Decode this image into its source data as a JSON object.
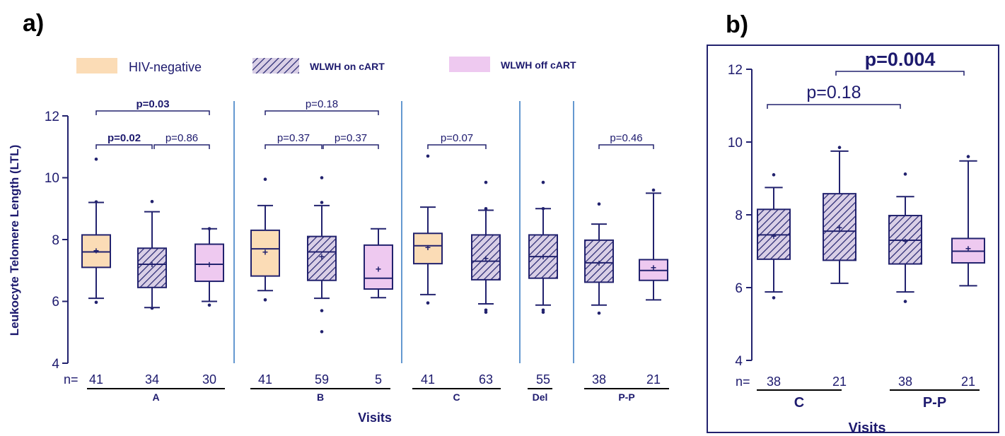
{
  "colors": {
    "navy": "#22226e",
    "hiv_negative": "#fbdcb6",
    "wlwh_on_cart": "#d9cfe6",
    "wlwh_off_cart": "#eec9f0",
    "divider": "#3d7fc4"
  },
  "panel_a": {
    "letter": "a)",
    "ylabel": "Leukocyte Telomere Length (LTL)",
    "xlabel": "Visits",
    "n_prefix": "n=",
    "legend": [
      {
        "label": "HIV-negative",
        "style": "hiv_negative"
      },
      {
        "label": "WLWH on cART",
        "style": "wlwh_on_cart"
      },
      {
        "label": "WLWH off cART",
        "style": "wlwh_off_cart"
      }
    ]
  },
  "panel_b": {
    "letter": "b)",
    "xlabel": "Visits",
    "n_prefix": "n="
  },
  "chart_data": [
    {
      "type": "box",
      "panel": "a",
      "ylabel": "Leukocyte Telomere Length (LTL)",
      "xlabel": "Visits",
      "ylim": [
        4,
        12
      ],
      "yticks": [
        4,
        6,
        8,
        10,
        12
      ],
      "groups": [
        {
          "visit": "A",
          "boxes": [
            {
              "group": "HIV-negative",
              "n": "41",
              "min": 6.1,
              "q1": 7.1,
              "median": 7.6,
              "q3": 8.15,
              "max": 9.2,
              "mean": 7.65,
              "outliers": [
                5.97,
                9.22,
                10.6
              ]
            },
            {
              "group": "WLWH on cART",
              "n": "34",
              "min": 5.8,
              "q1": 6.45,
              "median": 7.2,
              "q3": 7.72,
              "max": 8.9,
              "mean": 7.2,
              "outliers": [
                5.78,
                9.23
              ]
            },
            {
              "group": "WLWH off cART",
              "n": "30",
              "min": 6.0,
              "q1": 6.65,
              "median": 7.2,
              "q3": 7.85,
              "max": 8.35,
              "mean": 7.2,
              "outliers": [
                5.88,
                8.35
              ]
            }
          ]
        },
        {
          "visit": "B",
          "boxes": [
            {
              "group": "HIV-negative",
              "n": "41",
              "min": 6.35,
              "q1": 6.82,
              "median": 7.7,
              "q3": 8.3,
              "max": 9.1,
              "mean": 7.6,
              "outliers": [
                6.05,
                9.95
              ]
            },
            {
              "group": "WLWH on cART",
              "n": "59",
              "min": 6.1,
              "q1": 6.68,
              "median": 7.6,
              "q3": 8.1,
              "max": 9.1,
              "mean": 7.45,
              "outliers": [
                5.02,
                5.7,
                9.2,
                10.0
              ]
            },
            {
              "group": "WLWH off cART",
              "n": "5",
              "min": 6.12,
              "q1": 6.4,
              "median": 6.75,
              "q3": 7.82,
              "max": 8.35,
              "mean": 7.05,
              "outliers": []
            }
          ]
        },
        {
          "visit": "C",
          "boxes": [
            {
              "group": "HIV-negative",
              "n": "41",
              "min": 6.22,
              "q1": 7.22,
              "median": 7.8,
              "q3": 8.2,
              "max": 9.05,
              "mean": 7.75,
              "outliers": [
                5.95,
                10.7
              ]
            },
            {
              "group": "WLWH on cART",
              "n": "63",
              "min": 5.92,
              "q1": 6.7,
              "median": 7.3,
              "q3": 8.15,
              "max": 8.95,
              "mean": 7.4,
              "outliers": [
                5.65,
                5.72,
                9.0,
                9.85
              ]
            }
          ]
        },
        {
          "visit": "Del",
          "boxes": [
            {
              "group": "WLWH on cART",
              "n": "55",
              "min": 5.88,
              "q1": 6.75,
              "median": 7.45,
              "q3": 8.15,
              "max": 9.0,
              "mean": 7.45,
              "outliers": [
                5.65,
                5.72,
                9.0,
                9.85
              ]
            }
          ]
        },
        {
          "visit": "P-P",
          "boxes": [
            {
              "group": "WLWH on cART",
              "n": "38",
              "min": 5.88,
              "q1": 6.62,
              "median": 7.25,
              "q3": 7.98,
              "max": 8.5,
              "mean": 7.25,
              "outliers": [
                5.62,
                9.15
              ]
            },
            {
              "group": "WLWH off cART",
              "n": "21",
              "min": 6.05,
              "q1": 6.68,
              "median": 7.0,
              "q3": 7.35,
              "max": 9.5,
              "mean": 7.1,
              "outliers": [
                9.6
              ]
            }
          ]
        }
      ],
      "comparisons": [
        {
          "text": "p=0.03",
          "bold": true
        },
        {
          "text": "p=0.02",
          "bold": true
        },
        {
          "text": "p=0.86",
          "bold": false
        },
        {
          "text": "p=0.18",
          "bold": false
        },
        {
          "text": "p=0.37",
          "bold": false
        },
        {
          "text": "p=0.37",
          "bold": false
        },
        {
          "text": "p=0.07",
          "bold": false
        },
        {
          "text": "p=0.46",
          "bold": false
        }
      ]
    },
    {
      "type": "box",
      "panel": "b",
      "xlabel": "Visits",
      "ylim": [
        4,
        12
      ],
      "yticks": [
        4,
        6,
        8,
        10,
        12
      ],
      "groups": [
        {
          "visit": "C",
          "boxes": [
            {
              "group": "WLWH on cART",
              "n": "38",
              "min": 5.88,
              "q1": 6.78,
              "median": 7.45,
              "q3": 8.15,
              "max": 8.75,
              "mean": 7.42,
              "outliers": [
                5.72,
                9.1
              ]
            },
            {
              "group": "WLWH on cART",
              "n": "21",
              "min": 6.12,
              "q1": 6.75,
              "median": 7.55,
              "q3": 8.58,
              "max": 9.75,
              "mean": 7.65,
              "outliers": [
                9.85
              ]
            }
          ]
        },
        {
          "visit": "P-P",
          "boxes": [
            {
              "group": "WLWH on cART",
              "n": "38",
              "min": 5.88,
              "q1": 6.65,
              "median": 7.3,
              "q3": 7.98,
              "max": 8.5,
              "mean": 7.28,
              "outliers": [
                5.62,
                9.12
              ]
            },
            {
              "group": "WLWH off cART",
              "n": "21",
              "min": 6.05,
              "q1": 6.68,
              "median": 7.0,
              "q3": 7.35,
              "max": 9.48,
              "mean": 7.08,
              "outliers": [
                9.6
              ]
            }
          ]
        }
      ],
      "comparisons": [
        {
          "text": "p=0.18",
          "bold": false
        },
        {
          "text": "p=0.004",
          "bold": true
        }
      ]
    }
  ]
}
